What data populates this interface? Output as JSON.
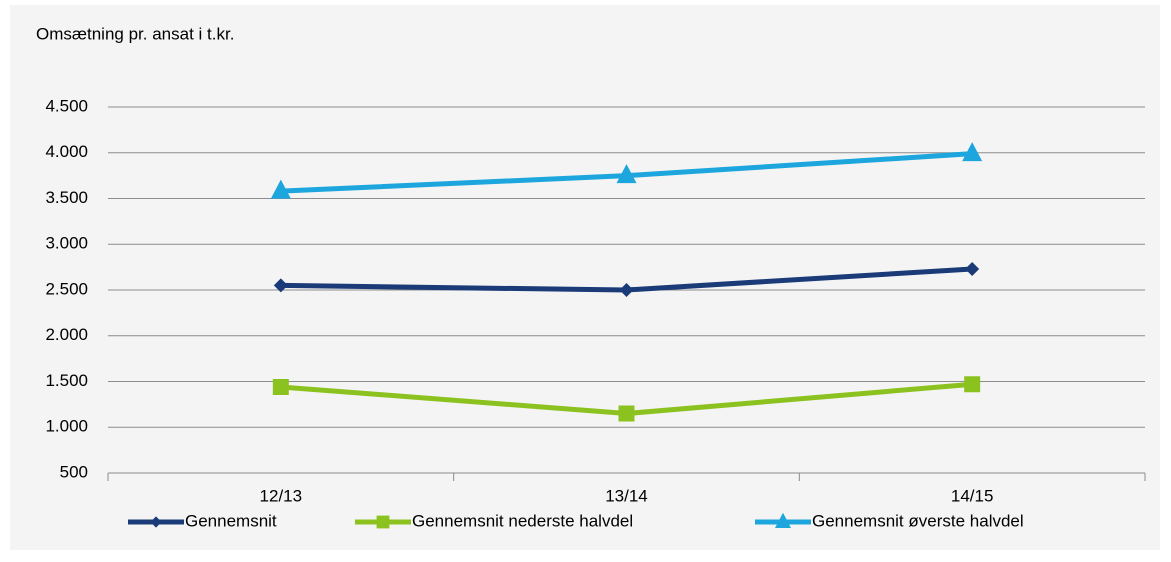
{
  "chart_data": {
    "type": "line",
    "title": "Omsætning pr. ansat i t.kr.",
    "categories": [
      "12/13",
      "13/14",
      "14/15"
    ],
    "series": [
      {
        "name": "Gennemsnit",
        "color": "#1a3a78",
        "marker": "diamond",
        "values": [
          2550,
          2500,
          2730
        ]
      },
      {
        "name": "Gennemsnit nederste halvdel",
        "color": "#8cc21f",
        "marker": "square",
        "values": [
          1440,
          1150,
          1470
        ]
      },
      {
        "name": "Gennemsnit øverste halvdel",
        "color": "#1ca6dd",
        "marker": "triangle",
        "values": [
          3580,
          3750,
          3990
        ]
      }
    ],
    "ylim": [
      500,
      4500
    ],
    "yticks": [
      500,
      {
        "value": 1000,
        "label": "1.000"
      },
      {
        "value": 1500,
        "label": "1.500"
      },
      {
        "value": 2000,
        "label": "2.000"
      },
      {
        "value": 2500,
        "label": "2.500"
      },
      {
        "value": 3000,
        "label": "3.000"
      },
      {
        "value": 3500,
        "label": "3.500"
      },
      {
        "value": 4000,
        "label": "4.000"
      },
      {
        "value": 4500,
        "label": "4.500"
      }
    ],
    "grid": true,
    "legend": "bottom"
  }
}
